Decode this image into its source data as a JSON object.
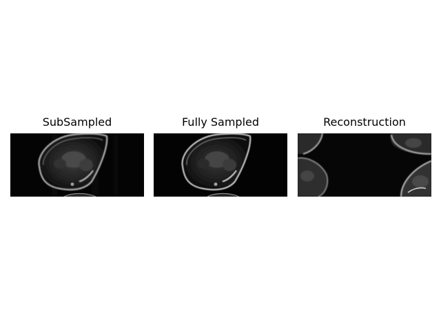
{
  "figure": {
    "panels": [
      {
        "title": "SubSampled"
      },
      {
        "title": "Fully Sampled"
      },
      {
        "title": "Reconstruction"
      }
    ]
  }
}
